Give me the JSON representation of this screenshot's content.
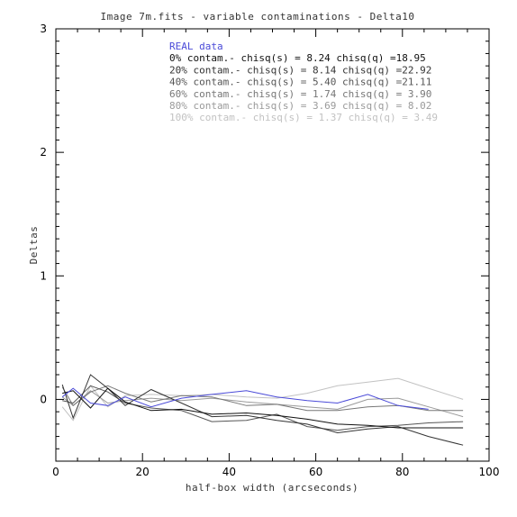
{
  "chart_data": {
    "type": "line",
    "title": "Image 7m.fits - variable contaminations - Delta10",
    "xlabel": "half-box width (arcseconds)",
    "ylabel": "Deltas",
    "xlim": [
      0,
      100
    ],
    "ylim": [
      -0.5,
      3
    ],
    "xticks": [
      "0",
      "20",
      "40",
      "60",
      "80",
      "100"
    ],
    "yticks": [
      "0",
      "1",
      "2",
      "3"
    ],
    "grid": false,
    "legend_position": "top-center",
    "series": [
      {
        "name": "REAL data",
        "color": "#4a4ad8",
        "x": [
          1.5,
          4,
          8,
          12,
          16,
          22,
          29,
          36,
          44,
          51,
          58,
          65,
          72,
          79,
          86
        ],
        "y": [
          0.02,
          0.09,
          -0.03,
          -0.05,
          0.02,
          -0.06,
          0.01,
          0.04,
          0.07,
          0.02,
          -0.01,
          -0.03,
          0.04,
          -0.05,
          -0.08
        ]
      },
      {
        "name": "0% contam.- chisq(s) = 8.24 chisq(q) =18.95",
        "color": "#111111",
        "x": [
          1.5,
          4,
          8,
          12,
          16,
          22,
          29,
          36,
          44,
          51,
          58,
          65,
          72,
          79,
          86,
          94
        ],
        "y": [
          0.05,
          0.07,
          -0.07,
          0.09,
          -0.02,
          -0.09,
          -0.08,
          -0.12,
          -0.11,
          -0.13,
          -0.16,
          -0.2,
          -0.21,
          -0.23,
          -0.23,
          -0.23
        ]
      },
      {
        "name": "20% contam.- chisq(s) = 8.14 chisq(q) =22.92",
        "color": "#333333",
        "x": [
          1.5,
          4,
          8,
          12,
          16,
          22,
          29,
          36,
          44,
          51,
          58,
          65,
          72,
          79,
          86,
          94
        ],
        "y": [
          0.12,
          -0.15,
          0.2,
          0.09,
          -0.05,
          0.08,
          -0.03,
          -0.14,
          -0.13,
          -0.17,
          -0.2,
          -0.27,
          -0.24,
          -0.22,
          -0.3,
          -0.37
        ]
      },
      {
        "name": "40% contam.- chisq(s) = 5.40 chisq(q) =21.11",
        "color": "#555555",
        "x": [
          1.5,
          4,
          8,
          12,
          16,
          22,
          29,
          36,
          44,
          51,
          58,
          65,
          72,
          79,
          86,
          94
        ],
        "y": [
          -0.01,
          -0.03,
          0.11,
          0.06,
          -0.03,
          -0.07,
          -0.09,
          -0.18,
          -0.17,
          -0.12,
          -0.22,
          -0.25,
          -0.22,
          -0.21,
          -0.19,
          -0.18
        ]
      },
      {
        "name": "60% contam.- chisq(s) = 1.74 chisq(q) = 3.90",
        "color": "#777777",
        "x": [
          1.5,
          4,
          8,
          12,
          16,
          22,
          29,
          36,
          44,
          51,
          58,
          65,
          72,
          79,
          86,
          94
        ],
        "y": [
          0.1,
          -0.05,
          0.06,
          0.11,
          0.05,
          -0.02,
          0.03,
          0.02,
          -0.05,
          -0.04,
          -0.09,
          -0.09,
          -0.06,
          -0.05,
          -0.09,
          -0.09
        ]
      },
      {
        "name": "80% contam.- chisq(s) = 3.69 chisq(q) = 8.02",
        "color": "#9a9a9a",
        "x": [
          1.5,
          4,
          8,
          12,
          16,
          22,
          29,
          36,
          44,
          51,
          58,
          65,
          72,
          79,
          86,
          94
        ],
        "y": [
          0.02,
          -0.05,
          0.07,
          -0.03,
          -0.01,
          0.01,
          -0.01,
          0.01,
          -0.02,
          -0.04,
          -0.06,
          -0.08,
          0.0,
          0.01,
          -0.06,
          -0.14
        ]
      },
      {
        "name": "100% contam.- chisq(s) = 1.37 chisq(q) = 3.49",
        "color": "#c2c2c2",
        "x": [
          1.5,
          4,
          8,
          12,
          16,
          22,
          29,
          36,
          44,
          51,
          58,
          65,
          72,
          79,
          86,
          94
        ],
        "y": [
          -0.06,
          -0.17,
          0.11,
          -0.06,
          0.03,
          0.04,
          0.03,
          0.04,
          0.02,
          0.01,
          0.05,
          0.11,
          0.14,
          0.17,
          0.09,
          0.0
        ]
      }
    ]
  }
}
